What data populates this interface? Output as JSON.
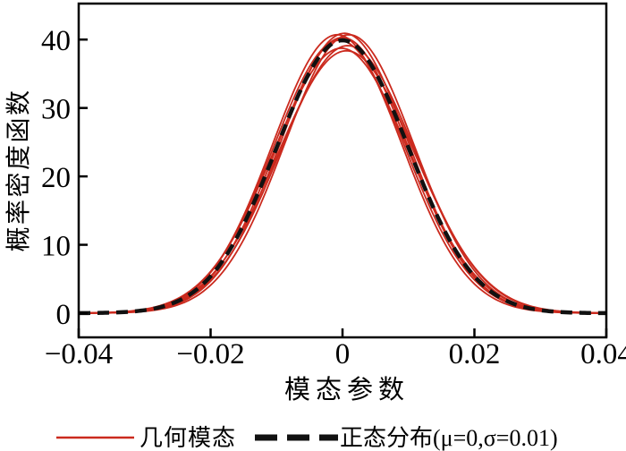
{
  "figure": {
    "background": "#ffffff",
    "axis_color": "#000000"
  },
  "chart_data": {
    "type": "line",
    "title": "",
    "xlabel": "模态参数",
    "ylabel": "概率密度函数",
    "xlim": [
      -0.04,
      0.04
    ],
    "ylim": [
      -3.53,
      45.26
    ],
    "xticks": [
      -0.04,
      -0.02,
      0,
      0.02,
      0.04
    ],
    "xtick_labels": [
      "−0.04",
      "−0.02",
      "0",
      "0.02",
      "0.04"
    ],
    "yticks": [
      0,
      10,
      20,
      30,
      40
    ],
    "ytick_labels": [
      "0",
      "10",
      "20",
      "30",
      "40"
    ],
    "grid": false,
    "legend_position": "bottom-center",
    "series": [
      {
        "name": "几何模态",
        "type": "gaussian-bundle",
        "color": "#cb2a1e",
        "line_style": "solid",
        "line_width": 1.8,
        "curves": [
          {
            "mu": 0.0003,
            "sigma": 0.00975
          },
          {
            "mu": -0.0005,
            "sigma": 0.01
          },
          {
            "mu": 0.0008,
            "sigma": 0.0102
          },
          {
            "mu": -0.0008,
            "sigma": 0.0098
          },
          {
            "mu": 0.0006,
            "sigma": 0.0104
          },
          {
            "mu": 0.0,
            "sigma": 0.0099
          },
          {
            "mu": -0.0002,
            "sigma": 0.0103
          },
          {
            "mu": 0.001,
            "sigma": 0.0098
          }
        ]
      },
      {
        "name": "正态分布(μ=0,σ=0.01)",
        "type": "gaussian",
        "color": "#111111",
        "line_style": "dashed",
        "line_width": 4.5,
        "mu": 0,
        "sigma": 0.01,
        "peak_value": 39.89
      }
    ]
  }
}
